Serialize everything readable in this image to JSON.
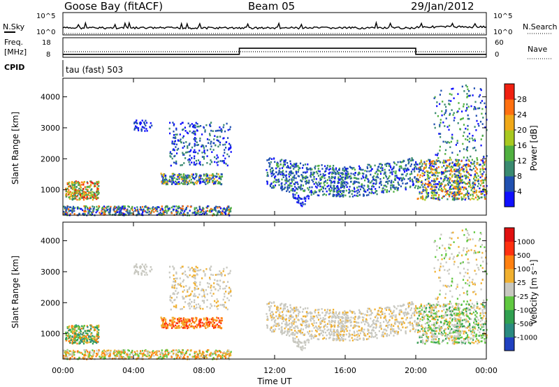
{
  "header": {
    "station": "Goose Bay (fitACF)",
    "beam": "Beam 05",
    "date": "29/Jan/2012"
  },
  "status_panels": {
    "nsky": {
      "label": "N.Sky",
      "left_ticks": [
        "10^5",
        "10^0"
      ]
    },
    "nsearch": {
      "label": "N.Search",
      "right_ticks": [
        "10^5",
        "10^0"
      ]
    },
    "freq": {
      "label_line1": "Freq.",
      "label_line2": "[MHz]",
      "left_ticks": [
        "18",
        "8"
      ]
    },
    "nave": {
      "label": "Nave",
      "right_ticks": [
        "60",
        "0"
      ]
    },
    "cpid": {
      "label": "CPID",
      "value_text": "tau (fast) 503"
    }
  },
  "chart_data": [
    {
      "type": "heatmap",
      "name": "power",
      "ylabel": "Slant Range [km]",
      "xlabel": "",
      "xlim": [
        "00:00",
        "00:00"
      ],
      "ylim": [
        180,
        4600
      ],
      "y_ticks": [
        1000,
        2000,
        3000,
        4000
      ],
      "colorbar": {
        "label": "Power [dB]",
        "ticks": [
          "4",
          "8",
          "12",
          "16",
          "20",
          "24",
          "28"
        ],
        "colors": [
          "#1010ff",
          "#2050b0",
          "#3a8a70",
          "#50b040",
          "#a8c820",
          "#f0a818",
          "#ff7010",
          "#f02010"
        ]
      }
    },
    {
      "type": "heatmap",
      "name": "velocity",
      "ylabel": "Slant Range [km]",
      "xlabel": "Time UT",
      "xlim": [
        "00:00",
        "00:00"
      ],
      "ylim": [
        180,
        4600
      ],
      "y_ticks": [
        1000,
        2000,
        3000,
        4000
      ],
      "x_ticks": [
        "00:00",
        "04:00",
        "08:00",
        "12:00",
        "16:00",
        "20:00",
        "00:00"
      ],
      "colorbar": {
        "label": "Velocity [m s⁻¹]",
        "ticks": [
          "1000",
          "500",
          "100",
          "25",
          "-25",
          "-100",
          "-500",
          "-1000"
        ],
        "colors": [
          "#2040c0",
          "#2a8a80",
          "#30a050",
          "#60c840",
          "#c8c8c0",
          "#f0b030",
          "#ff8010",
          "#ff3010",
          "#e01010"
        ]
      }
    },
    {
      "type": "line",
      "name": "frequency",
      "x": [
        "00:00",
        "10:00",
        "10:00",
        "20:00",
        "20:00",
        "24:00"
      ],
      "y": [
        9.5,
        9.5,
        12.6,
        12.6,
        9.5,
        9.5
      ]
    }
  ]
}
